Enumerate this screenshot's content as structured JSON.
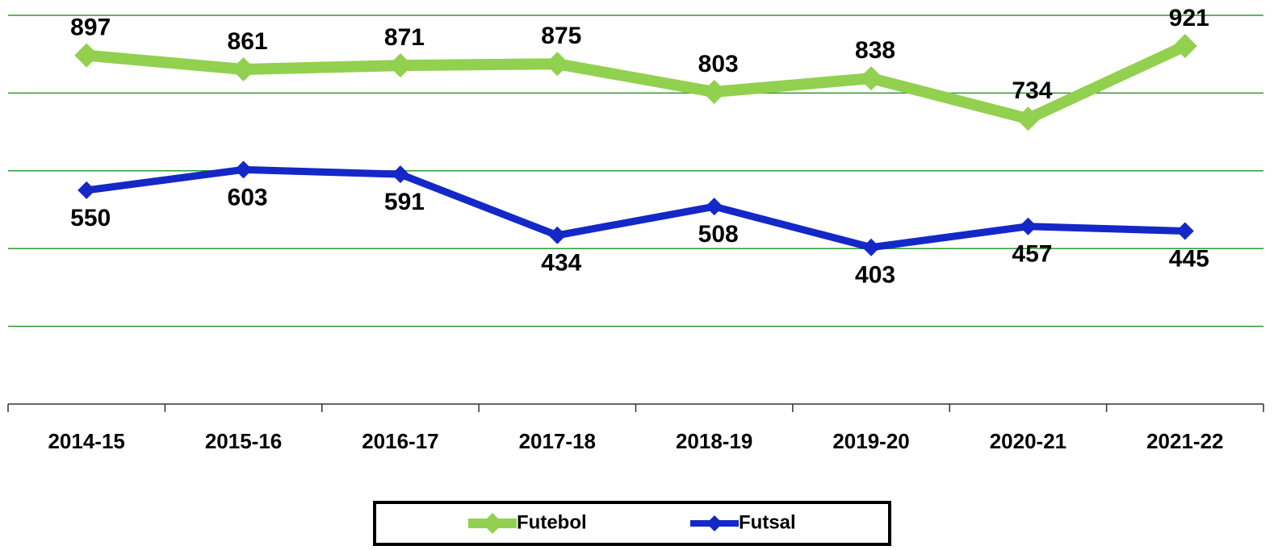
{
  "chart_data": {
    "type": "line",
    "categories": [
      "2014-15",
      "2015-16",
      "2016-17",
      "2017-18",
      "2018-19",
      "2019-20",
      "2020-21",
      "2021-22"
    ],
    "series": [
      {
        "name": "Futebol",
        "color": "#92d050",
        "values": [
          897,
          861,
          871,
          875,
          803,
          838,
          734,
          921
        ]
      },
      {
        "name": "Futsal",
        "color": "#1428c8",
        "values": [
          550,
          603,
          591,
          434,
          508,
          403,
          457,
          445
        ]
      }
    ],
    "ylim": [
      0,
      1000
    ],
    "yticks": [
      0,
      200,
      400,
      600,
      800,
      1000
    ],
    "grid": true,
    "grid_color": "#2e9a2e",
    "legend": "bottom"
  }
}
